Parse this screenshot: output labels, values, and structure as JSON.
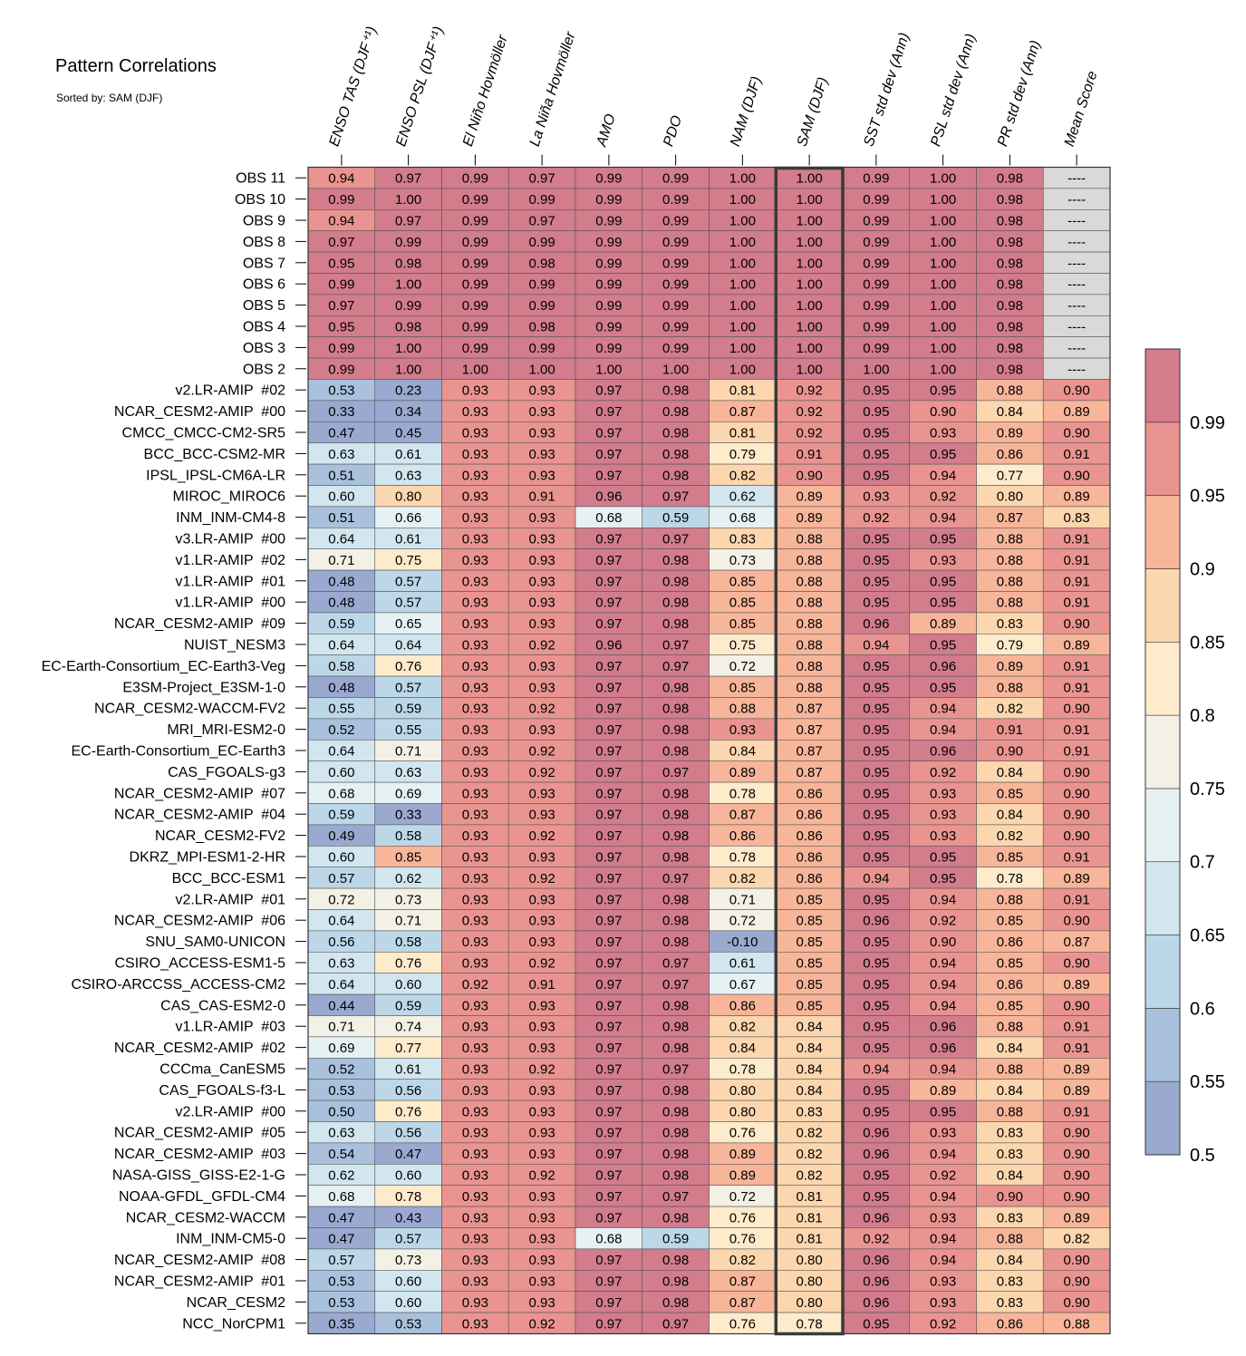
{
  "title": "Pattern Correlations",
  "subtitle": "Sorted by: SAM (DJF)",
  "chart_data": {
    "type": "heatmap",
    "columns": [
      "ENSO TAS (DJF⁺¹)",
      "ENSO PSL (DJF⁺¹)",
      "El Niño Hovmöller",
      "La Niña Hovmöller",
      "AMO",
      "PDO",
      "NAM (DJF)",
      "SAM (DJF)",
      "SST std dev (Ann)",
      "PSL std dev (Ann)",
      "PR std dev (Ann)",
      "Mean Score"
    ],
    "highlighted_column": "SAM (DJF)",
    "missing_label": "----",
    "colorbar_ticks": [
      "0.99",
      "0.95",
      "0.9",
      "0.85",
      "0.8",
      "0.75",
      "0.7",
      "0.65",
      "0.6",
      "0.55",
      "0.5"
    ],
    "colorbar_levels": [
      0.5,
      0.55,
      0.6,
      0.65,
      0.7,
      0.75,
      0.8,
      0.85,
      0.9,
      0.95,
      0.99
    ],
    "colors": [
      "#9aa9d0",
      "#a9c1dd",
      "#bcd8e8",
      "#d2e6ef",
      "#e6f1f4",
      "#f3f1e6",
      "#fdebcc",
      "#fcd6ae",
      "#f7b59a",
      "#e99490",
      "#d27c8c"
    ],
    "missing_color": "#d9d9d9",
    "rows": [
      {
        "label": "OBS 11",
        "values": [
          "0.94",
          "0.97",
          "0.99",
          "0.97",
          "0.99",
          "0.99",
          "1.00",
          "1.00",
          "0.99",
          "1.00",
          "0.98",
          "----"
        ]
      },
      {
        "label": "OBS 10",
        "values": [
          "0.99",
          "1.00",
          "0.99",
          "0.99",
          "0.99",
          "0.99",
          "1.00",
          "1.00",
          "0.99",
          "1.00",
          "0.98",
          "----"
        ]
      },
      {
        "label": "OBS 9",
        "values": [
          "0.94",
          "0.97",
          "0.99",
          "0.97",
          "0.99",
          "0.99",
          "1.00",
          "1.00",
          "0.99",
          "1.00",
          "0.98",
          "----"
        ]
      },
      {
        "label": "OBS 8",
        "values": [
          "0.97",
          "0.99",
          "0.99",
          "0.99",
          "0.99",
          "0.99",
          "1.00",
          "1.00",
          "0.99",
          "1.00",
          "0.98",
          "----"
        ]
      },
      {
        "label": "OBS 7",
        "values": [
          "0.95",
          "0.98",
          "0.99",
          "0.98",
          "0.99",
          "0.99",
          "1.00",
          "1.00",
          "0.99",
          "1.00",
          "0.98",
          "----"
        ]
      },
      {
        "label": "OBS 6",
        "values": [
          "0.99",
          "1.00",
          "0.99",
          "0.99",
          "0.99",
          "0.99",
          "1.00",
          "1.00",
          "0.99",
          "1.00",
          "0.98",
          "----"
        ]
      },
      {
        "label": "OBS 5",
        "values": [
          "0.97",
          "0.99",
          "0.99",
          "0.99",
          "0.99",
          "0.99",
          "1.00",
          "1.00",
          "0.99",
          "1.00",
          "0.98",
          "----"
        ]
      },
      {
        "label": "OBS 4",
        "values": [
          "0.95",
          "0.98",
          "0.99",
          "0.98",
          "0.99",
          "0.99",
          "1.00",
          "1.00",
          "0.99",
          "1.00",
          "0.98",
          "----"
        ]
      },
      {
        "label": "OBS 3",
        "values": [
          "0.99",
          "1.00",
          "0.99",
          "0.99",
          "0.99",
          "0.99",
          "1.00",
          "1.00",
          "0.99",
          "1.00",
          "0.98",
          "----"
        ]
      },
      {
        "label": "OBS 2",
        "values": [
          "0.99",
          "1.00",
          "1.00",
          "1.00",
          "1.00",
          "1.00",
          "1.00",
          "1.00",
          "1.00",
          "1.00",
          "0.98",
          "----"
        ]
      },
      {
        "label": "v2.LR-AMIP  #02",
        "values": [
          "0.53",
          "0.23",
          "0.93",
          "0.93",
          "0.97",
          "0.98",
          "0.81",
          "0.92",
          "0.95",
          "0.95",
          "0.88",
          "0.90"
        ]
      },
      {
        "label": "NCAR_CESM2-AMIP  #00",
        "values": [
          "0.33",
          "0.34",
          "0.93",
          "0.93",
          "0.97",
          "0.98",
          "0.87",
          "0.92",
          "0.95",
          "0.90",
          "0.84",
          "0.89"
        ]
      },
      {
        "label": "CMCC_CMCC-CM2-SR5",
        "values": [
          "0.47",
          "0.45",
          "0.93",
          "0.93",
          "0.97",
          "0.98",
          "0.81",
          "0.92",
          "0.95",
          "0.93",
          "0.89",
          "0.90"
        ]
      },
      {
        "label": "BCC_BCC-CSM2-MR",
        "values": [
          "0.63",
          "0.61",
          "0.93",
          "0.93",
          "0.97",
          "0.98",
          "0.79",
          "0.91",
          "0.95",
          "0.95",
          "0.86",
          "0.91"
        ]
      },
      {
        "label": "IPSL_IPSL-CM6A-LR",
        "values": [
          "0.51",
          "0.63",
          "0.93",
          "0.93",
          "0.97",
          "0.98",
          "0.82",
          "0.90",
          "0.95",
          "0.94",
          "0.77",
          "0.90"
        ]
      },
      {
        "label": "MIROC_MIROC6",
        "values": [
          "0.60",
          "0.80",
          "0.93",
          "0.91",
          "0.96",
          "0.97",
          "0.62",
          "0.89",
          "0.93",
          "0.92",
          "0.80",
          "0.89"
        ]
      },
      {
        "label": "INM_INM-CM4-8",
        "values": [
          "0.51",
          "0.66",
          "0.93",
          "0.93",
          "0.68",
          "0.59",
          "0.68",
          "0.89",
          "0.92",
          "0.94",
          "0.87",
          "0.83"
        ]
      },
      {
        "label": "v3.LR-AMIP  #00",
        "values": [
          "0.64",
          "0.61",
          "0.93",
          "0.93",
          "0.97",
          "0.97",
          "0.83",
          "0.88",
          "0.95",
          "0.95",
          "0.88",
          "0.91"
        ]
      },
      {
        "label": "v1.LR-AMIP  #02",
        "values": [
          "0.71",
          "0.75",
          "0.93",
          "0.93",
          "0.97",
          "0.98",
          "0.73",
          "0.88",
          "0.95",
          "0.93",
          "0.88",
          "0.91"
        ]
      },
      {
        "label": "v1.LR-AMIP  #01",
        "values": [
          "0.48",
          "0.57",
          "0.93",
          "0.93",
          "0.97",
          "0.98",
          "0.85",
          "0.88",
          "0.95",
          "0.95",
          "0.88",
          "0.91"
        ]
      },
      {
        "label": "v1.LR-AMIP  #00",
        "values": [
          "0.48",
          "0.57",
          "0.93",
          "0.93",
          "0.97",
          "0.98",
          "0.85",
          "0.88",
          "0.95",
          "0.95",
          "0.88",
          "0.91"
        ]
      },
      {
        "label": "NCAR_CESM2-AMIP  #09",
        "values": [
          "0.59",
          "0.65",
          "0.93",
          "0.93",
          "0.97",
          "0.98",
          "0.85",
          "0.88",
          "0.96",
          "0.89",
          "0.83",
          "0.90"
        ]
      },
      {
        "label": "NUIST_NESM3",
        "values": [
          "0.64",
          "0.64",
          "0.93",
          "0.92",
          "0.96",
          "0.97",
          "0.75",
          "0.88",
          "0.94",
          "0.95",
          "0.79",
          "0.89"
        ]
      },
      {
        "label": "EC-Earth-Consortium_EC-Earth3-Veg",
        "values": [
          "0.58",
          "0.76",
          "0.93",
          "0.93",
          "0.97",
          "0.97",
          "0.72",
          "0.88",
          "0.95",
          "0.96",
          "0.89",
          "0.91"
        ]
      },
      {
        "label": "E3SM-Project_E3SM-1-0",
        "values": [
          "0.48",
          "0.57",
          "0.93",
          "0.93",
          "0.97",
          "0.98",
          "0.85",
          "0.88",
          "0.95",
          "0.95",
          "0.88",
          "0.91"
        ]
      },
      {
        "label": "NCAR_CESM2-WACCM-FV2",
        "values": [
          "0.55",
          "0.59",
          "0.93",
          "0.92",
          "0.97",
          "0.98",
          "0.88",
          "0.87",
          "0.95",
          "0.94",
          "0.82",
          "0.90"
        ]
      },
      {
        "label": "MRI_MRI-ESM2-0",
        "values": [
          "0.52",
          "0.55",
          "0.93",
          "0.93",
          "0.97",
          "0.98",
          "0.93",
          "0.87",
          "0.95",
          "0.94",
          "0.91",
          "0.91"
        ]
      },
      {
        "label": "EC-Earth-Consortium_EC-Earth3",
        "values": [
          "0.64",
          "0.71",
          "0.93",
          "0.92",
          "0.97",
          "0.98",
          "0.84",
          "0.87",
          "0.95",
          "0.96",
          "0.90",
          "0.91"
        ]
      },
      {
        "label": "CAS_FGOALS-g3",
        "values": [
          "0.60",
          "0.63",
          "0.93",
          "0.92",
          "0.97",
          "0.97",
          "0.89",
          "0.87",
          "0.95",
          "0.92",
          "0.84",
          "0.90"
        ]
      },
      {
        "label": "NCAR_CESM2-AMIP  #07",
        "values": [
          "0.68",
          "0.69",
          "0.93",
          "0.93",
          "0.97",
          "0.98",
          "0.78",
          "0.86",
          "0.95",
          "0.93",
          "0.85",
          "0.90"
        ]
      },
      {
        "label": "NCAR_CESM2-AMIP  #04",
        "values": [
          "0.59",
          "0.33",
          "0.93",
          "0.93",
          "0.97",
          "0.98",
          "0.87",
          "0.86",
          "0.95",
          "0.93",
          "0.84",
          "0.90"
        ]
      },
      {
        "label": "NCAR_CESM2-FV2",
        "values": [
          "0.49",
          "0.58",
          "0.93",
          "0.92",
          "0.97",
          "0.98",
          "0.86",
          "0.86",
          "0.95",
          "0.93",
          "0.82",
          "0.90"
        ]
      },
      {
        "label": "DKRZ_MPI-ESM1-2-HR",
        "values": [
          "0.60",
          "0.85",
          "0.93",
          "0.93",
          "0.97",
          "0.98",
          "0.78",
          "0.86",
          "0.95",
          "0.95",
          "0.85",
          "0.91"
        ]
      },
      {
        "label": "BCC_BCC-ESM1",
        "values": [
          "0.57",
          "0.62",
          "0.93",
          "0.92",
          "0.97",
          "0.97",
          "0.82",
          "0.86",
          "0.94",
          "0.95",
          "0.78",
          "0.89"
        ]
      },
      {
        "label": "v2.LR-AMIP  #01",
        "values": [
          "0.72",
          "0.73",
          "0.93",
          "0.93",
          "0.97",
          "0.98",
          "0.71",
          "0.85",
          "0.95",
          "0.94",
          "0.88",
          "0.91"
        ]
      },
      {
        "label": "NCAR_CESM2-AMIP  #06",
        "values": [
          "0.64",
          "0.71",
          "0.93",
          "0.93",
          "0.97",
          "0.98",
          "0.72",
          "0.85",
          "0.96",
          "0.92",
          "0.85",
          "0.90"
        ]
      },
      {
        "label": "SNU_SAM0-UNICON",
        "values": [
          "0.56",
          "0.58",
          "0.93",
          "0.93",
          "0.97",
          "0.98",
          "-0.10",
          "0.85",
          "0.95",
          "0.90",
          "0.86",
          "0.87"
        ]
      },
      {
        "label": "CSIRO_ACCESS-ESM1-5",
        "values": [
          "0.63",
          "0.76",
          "0.93",
          "0.92",
          "0.97",
          "0.97",
          "0.61",
          "0.85",
          "0.95",
          "0.94",
          "0.85",
          "0.90"
        ]
      },
      {
        "label": "CSIRO-ARCCSS_ACCESS-CM2",
        "values": [
          "0.64",
          "0.60",
          "0.92",
          "0.91",
          "0.97",
          "0.97",
          "0.67",
          "0.85",
          "0.95",
          "0.94",
          "0.86",
          "0.89"
        ]
      },
      {
        "label": "CAS_CAS-ESM2-0",
        "values": [
          "0.44",
          "0.59",
          "0.93",
          "0.93",
          "0.97",
          "0.98",
          "0.86",
          "0.85",
          "0.95",
          "0.94",
          "0.85",
          "0.90"
        ]
      },
      {
        "label": "v1.LR-AMIP  #03",
        "values": [
          "0.71",
          "0.74",
          "0.93",
          "0.93",
          "0.97",
          "0.98",
          "0.82",
          "0.84",
          "0.95",
          "0.96",
          "0.88",
          "0.91"
        ]
      },
      {
        "label": "NCAR_CESM2-AMIP  #02",
        "values": [
          "0.69",
          "0.77",
          "0.93",
          "0.93",
          "0.97",
          "0.98",
          "0.84",
          "0.84",
          "0.95",
          "0.96",
          "0.84",
          "0.91"
        ]
      },
      {
        "label": "CCCma_CanESM5",
        "values": [
          "0.52",
          "0.61",
          "0.93",
          "0.92",
          "0.97",
          "0.97",
          "0.78",
          "0.84",
          "0.94",
          "0.94",
          "0.88",
          "0.89"
        ]
      },
      {
        "label": "CAS_FGOALS-f3-L",
        "values": [
          "0.53",
          "0.56",
          "0.93",
          "0.93",
          "0.97",
          "0.98",
          "0.80",
          "0.84",
          "0.95",
          "0.89",
          "0.84",
          "0.89"
        ]
      },
      {
        "label": "v2.LR-AMIP  #00",
        "values": [
          "0.50",
          "0.76",
          "0.93",
          "0.93",
          "0.97",
          "0.98",
          "0.80",
          "0.83",
          "0.95",
          "0.95",
          "0.88",
          "0.91"
        ]
      },
      {
        "label": "NCAR_CESM2-AMIP  #05",
        "values": [
          "0.63",
          "0.56",
          "0.93",
          "0.93",
          "0.97",
          "0.98",
          "0.76",
          "0.82",
          "0.96",
          "0.93",
          "0.83",
          "0.90"
        ]
      },
      {
        "label": "NCAR_CESM2-AMIP  #03",
        "values": [
          "0.54",
          "0.47",
          "0.93",
          "0.93",
          "0.97",
          "0.98",
          "0.89",
          "0.82",
          "0.96",
          "0.94",
          "0.83",
          "0.90"
        ]
      },
      {
        "label": "NASA-GISS_GISS-E2-1-G",
        "values": [
          "0.62",
          "0.60",
          "0.93",
          "0.92",
          "0.97",
          "0.98",
          "0.89",
          "0.82",
          "0.95",
          "0.92",
          "0.84",
          "0.90"
        ]
      },
      {
        "label": "NOAA-GFDL_GFDL-CM4",
        "values": [
          "0.68",
          "0.78",
          "0.93",
          "0.93",
          "0.97",
          "0.97",
          "0.72",
          "0.81",
          "0.95",
          "0.94",
          "0.90",
          "0.90"
        ]
      },
      {
        "label": "NCAR_CESM2-WACCM",
        "values": [
          "0.47",
          "0.43",
          "0.93",
          "0.93",
          "0.97",
          "0.98",
          "0.76",
          "0.81",
          "0.96",
          "0.93",
          "0.83",
          "0.89"
        ]
      },
      {
        "label": "INM_INM-CM5-0",
        "values": [
          "0.47",
          "0.57",
          "0.93",
          "0.93",
          "0.68",
          "0.59",
          "0.76",
          "0.81",
          "0.92",
          "0.94",
          "0.88",
          "0.82"
        ]
      },
      {
        "label": "NCAR_CESM2-AMIP  #08",
        "values": [
          "0.57",
          "0.73",
          "0.93",
          "0.93",
          "0.97",
          "0.98",
          "0.82",
          "0.80",
          "0.96",
          "0.94",
          "0.84",
          "0.90"
        ]
      },
      {
        "label": "NCAR_CESM2-AMIP  #01",
        "values": [
          "0.53",
          "0.60",
          "0.93",
          "0.93",
          "0.97",
          "0.98",
          "0.87",
          "0.80",
          "0.96",
          "0.93",
          "0.83",
          "0.90"
        ]
      },
      {
        "label": "NCAR_CESM2",
        "values": [
          "0.53",
          "0.60",
          "0.93",
          "0.93",
          "0.97",
          "0.98",
          "0.87",
          "0.80",
          "0.96",
          "0.93",
          "0.83",
          "0.90"
        ]
      },
      {
        "label": "NCC_NorCPM1",
        "values": [
          "0.35",
          "0.53",
          "0.93",
          "0.92",
          "0.97",
          "0.97",
          "0.76",
          "0.78",
          "0.95",
          "0.92",
          "0.86",
          "0.88"
        ]
      }
    ]
  }
}
